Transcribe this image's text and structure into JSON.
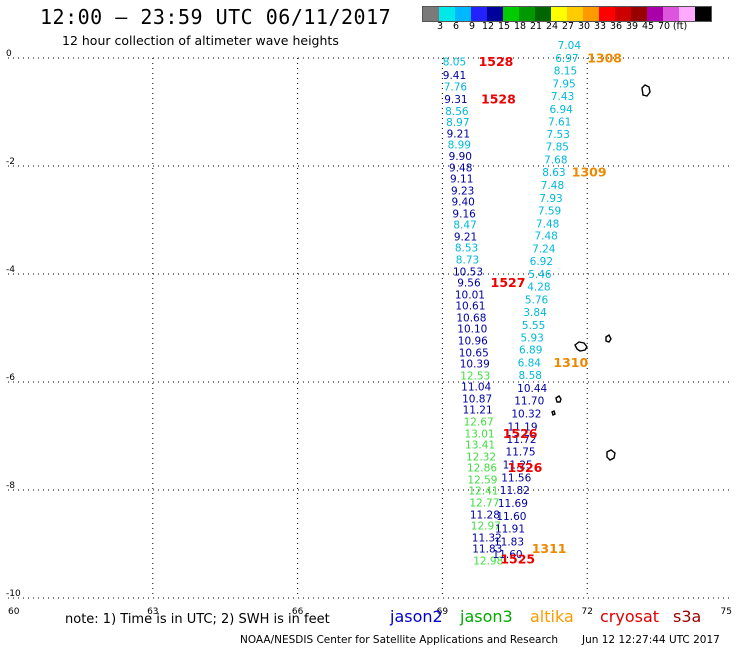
{
  "header": {
    "title": "12:00 — 23:59 UTC 06/11/2017",
    "subtitle": "12 hour collection of altimeter wave heights"
  },
  "colorbar": {
    "colors": [
      "#7a7a7a",
      "#00e8e8",
      "#00b8ff",
      "#2222ff",
      "#00009a",
      "#00cc00",
      "#009900",
      "#006600",
      "#ffff00",
      "#ffcc00",
      "#ff9900",
      "#ff0000",
      "#cc0000",
      "#990000",
      "#aa00aa",
      "#dd55dd",
      "#ffaaff",
      "#000000"
    ],
    "ticks": [
      "3",
      "6",
      "9",
      "12",
      "15",
      "18",
      "21",
      "24",
      "27",
      "30",
      "33",
      "36",
      "39",
      "45",
      "70",
      "(ft)"
    ]
  },
  "footer": {
    "note": "note: 1) Time is in UTC; 2) SWH is in feet",
    "missions": [
      {
        "name": "jason2",
        "color": "#0000cc"
      },
      {
        "name": "jason3",
        "color": "#00aa00"
      },
      {
        "name": "altika",
        "color": "#ff9900"
      },
      {
        "name": "cryosat",
        "color": "#dd0000"
      },
      {
        "name": "s3a",
        "color": "#990000"
      }
    ],
    "credit": "NOAA/NESDIS Center for Satellite Applications and Research",
    "timestamp": "Jun 12 12:27:44 UTC 2017"
  },
  "chart_data": {
    "type": "scatter",
    "title": "12:00 — 23:59 UTC 06/11/2017",
    "subtitle": "12 hour collection of altimeter wave heights",
    "xlim": [
      60,
      75
    ],
    "ylim": [
      -10,
      0
    ],
    "xticks": [
      "60",
      "63",
      "66",
      "69",
      "72",
      "75"
    ],
    "yticks": [
      "0",
      "-2",
      "-4",
      "-6",
      "-8",
      "-10"
    ],
    "grid": true,
    "units": "ft",
    "legend_placement": "bottom",
    "swh_points": [
      {
        "lon": 69.25,
        "lat": -0.08,
        "v": "8.05",
        "c": "#00b8d8"
      },
      {
        "lon": 69.25,
        "lat": -0.33,
        "v": "9.41",
        "c": "#0000a0"
      },
      {
        "lon": 69.27,
        "lat": -0.55,
        "v": "7.76",
        "c": "#00b8d8"
      },
      {
        "lon": 69.28,
        "lat": -0.78,
        "v": "9.31",
        "c": "#0000a0"
      },
      {
        "lon": 69.3,
        "lat": -1.0,
        "v": "8.56",
        "c": "#00b8d8"
      },
      {
        "lon": 69.32,
        "lat": -1.2,
        "v": "8.97",
        "c": "#00b8d8"
      },
      {
        "lon": 69.33,
        "lat": -1.42,
        "v": "9.21",
        "c": "#0000a0"
      },
      {
        "lon": 69.35,
        "lat": -1.62,
        "v": "8.99",
        "c": "#00b8d8"
      },
      {
        "lon": 69.37,
        "lat": -1.83,
        "v": "9.90",
        "c": "#0000a0"
      },
      {
        "lon": 69.38,
        "lat": -2.05,
        "v": "9.48",
        "c": "#0000a0"
      },
      {
        "lon": 69.4,
        "lat": -2.25,
        "v": "9.11",
        "c": "#0000a0"
      },
      {
        "lon": 69.42,
        "lat": -2.47,
        "v": "9.23",
        "c": "#0000a0"
      },
      {
        "lon": 69.43,
        "lat": -2.68,
        "v": "9.40",
        "c": "#0000a0"
      },
      {
        "lon": 69.45,
        "lat": -2.9,
        "v": "9.16",
        "c": "#0000a0"
      },
      {
        "lon": 69.47,
        "lat": -3.1,
        "v": "8.47",
        "c": "#00b8d8"
      },
      {
        "lon": 69.48,
        "lat": -3.32,
        "v": "9.21",
        "c": "#0000a0"
      },
      {
        "lon": 69.5,
        "lat": -3.53,
        "v": "8.53",
        "c": "#00b8d8"
      },
      {
        "lon": 69.52,
        "lat": -3.75,
        "v": "8.73",
        "c": "#00b8d8"
      },
      {
        "lon": 69.53,
        "lat": -3.97,
        "v": "10.53",
        "c": "#0000a0"
      },
      {
        "lon": 69.55,
        "lat": -4.18,
        "v": "9.56",
        "c": "#0000a0"
      },
      {
        "lon": 69.57,
        "lat": -4.4,
        "v": "10.01",
        "c": "#0000a0"
      },
      {
        "lon": 69.58,
        "lat": -4.6,
        "v": "10.61",
        "c": "#0000a0"
      },
      {
        "lon": 69.6,
        "lat": -4.82,
        "v": "10.68",
        "c": "#0000a0"
      },
      {
        "lon": 69.62,
        "lat": -5.03,
        "v": "10.10",
        "c": "#0000a0"
      },
      {
        "lon": 69.63,
        "lat": -5.25,
        "v": "10.96",
        "c": "#0000a0"
      },
      {
        "lon": 69.65,
        "lat": -5.47,
        "v": "10.65",
        "c": "#0000a0"
      },
      {
        "lon": 69.67,
        "lat": -5.68,
        "v": "10.39",
        "c": "#0000a0"
      },
      {
        "lon": 69.68,
        "lat": -5.9,
        "v": "12.53",
        "c": "#40dd40"
      },
      {
        "lon": 69.7,
        "lat": -6.1,
        "v": "11.04",
        "c": "#0000a0"
      },
      {
        "lon": 69.72,
        "lat": -6.32,
        "v": "10.87",
        "c": "#0000a0"
      },
      {
        "lon": 69.73,
        "lat": -6.53,
        "v": "11.21",
        "c": "#0000a0"
      },
      {
        "lon": 69.75,
        "lat": -6.75,
        "v": "12.67",
        "c": "#40dd40"
      },
      {
        "lon": 69.77,
        "lat": -6.97,
        "v": "13.01",
        "c": "#40dd40"
      },
      {
        "lon": 69.78,
        "lat": -7.18,
        "v": "13.41",
        "c": "#40dd40"
      },
      {
        "lon": 69.8,
        "lat": -7.4,
        "v": "12.32",
        "c": "#40dd40"
      },
      {
        "lon": 69.82,
        "lat": -7.6,
        "v": "12.86",
        "c": "#40dd40"
      },
      {
        "lon": 69.83,
        "lat": -7.82,
        "v": "12.59",
        "c": "#40dd40"
      },
      {
        "lon": 69.85,
        "lat": -8.03,
        "v": "12.41",
        "c": "#40dd40"
      },
      {
        "lon": 69.87,
        "lat": -8.25,
        "v": "12.77",
        "c": "#40dd40"
      },
      {
        "lon": 69.88,
        "lat": -8.47,
        "v": "11.28",
        "c": "#0000a0"
      },
      {
        "lon": 69.9,
        "lat": -8.68,
        "v": "12.97",
        "c": "#40dd40"
      },
      {
        "lon": 69.92,
        "lat": -8.9,
        "v": "11.32",
        "c": "#0000a0"
      },
      {
        "lon": 69.93,
        "lat": -9.1,
        "v": "11.83",
        "c": "#0000a0"
      },
      {
        "lon": 69.95,
        "lat": -9.32,
        "v": "12.98",
        "c": "#40dd40"
      },
      {
        "lon": 70.35,
        "lat": -9.2,
        "v": "11.60",
        "c": "#0000a0"
      },
      {
        "lon": 70.38,
        "lat": -8.97,
        "v": "11.83",
        "c": "#0000a0"
      },
      {
        "lon": 70.4,
        "lat": -8.73,
        "v": "11.91",
        "c": "#0000a0"
      },
      {
        "lon": 70.43,
        "lat": -8.5,
        "v": "11.60",
        "c": "#0000a0"
      },
      {
        "lon": 70.46,
        "lat": -8.26,
        "v": "11.69",
        "c": "#0000a0"
      },
      {
        "lon": 70.5,
        "lat": -8.02,
        "v": "11.82",
        "c": "#0000a0"
      },
      {
        "lon": 70.53,
        "lat": -7.79,
        "v": "11.56",
        "c": "#0000a0"
      },
      {
        "lon": 70.56,
        "lat": -7.55,
        "v": "11.25",
        "c": "#0000a0"
      },
      {
        "lon": 70.62,
        "lat": -7.31,
        "v": "11.75",
        "c": "#0000a0"
      },
      {
        "lon": 70.64,
        "lat": -7.07,
        "v": "11.72",
        "c": "#0000a0"
      },
      {
        "lon": 70.66,
        "lat": -6.84,
        "v": "11.19",
        "c": "#0000a0"
      },
      {
        "lon": 70.74,
        "lat": -6.6,
        "v": "10.32",
        "c": "#0000a0"
      },
      {
        "lon": 70.8,
        "lat": -6.36,
        "v": "11.70",
        "c": "#0000a0"
      },
      {
        "lon": 70.86,
        "lat": -6.13,
        "v": "10.44",
        "c": "#0000a0"
      },
      {
        "lon": 70.82,
        "lat": -5.89,
        "v": "8.58",
        "c": "#00b8d8"
      },
      {
        "lon": 70.8,
        "lat": -5.66,
        "v": "6.84",
        "c": "#00b8d8"
      },
      {
        "lon": 70.83,
        "lat": -5.42,
        "v": "6.89",
        "c": "#00b8d8"
      },
      {
        "lon": 70.86,
        "lat": -5.19,
        "v": "5.93",
        "c": "#00b8d8"
      },
      {
        "lon": 70.89,
        "lat": -4.96,
        "v": "5.55",
        "c": "#00b8d8"
      },
      {
        "lon": 70.92,
        "lat": -4.72,
        "v": "3.84",
        "c": "#00b8d8"
      },
      {
        "lon": 70.95,
        "lat": -4.49,
        "v": "5.76",
        "c": "#00b8d8"
      },
      {
        "lon": 71.0,
        "lat": -4.25,
        "v": "4.28",
        "c": "#00b8d8"
      },
      {
        "lon": 71.02,
        "lat": -4.02,
        "v": "5.46",
        "c": "#00b8d8"
      },
      {
        "lon": 71.05,
        "lat": -3.78,
        "v": "6.92",
        "c": "#00b8d8"
      },
      {
        "lon": 71.1,
        "lat": -3.55,
        "v": "7.24",
        "c": "#00b8d8"
      },
      {
        "lon": 71.15,
        "lat": -3.31,
        "v": "7.48",
        "c": "#00b8d8"
      },
      {
        "lon": 71.18,
        "lat": -3.08,
        "v": "7.48",
        "c": "#00b8d8"
      },
      {
        "lon": 71.22,
        "lat": -2.84,
        "v": "7.59",
        "c": "#00b8d8"
      },
      {
        "lon": 71.25,
        "lat": -2.61,
        "v": "7.93",
        "c": "#00b8d8"
      },
      {
        "lon": 71.28,
        "lat": -2.37,
        "v": "7.48",
        "c": "#00b8d8"
      },
      {
        "lon": 71.31,
        "lat": -2.13,
        "v": "8.63",
        "c": "#00b8d8"
      },
      {
        "lon": 71.35,
        "lat": -1.9,
        "v": "7.68",
        "c": "#00b8d8"
      },
      {
        "lon": 71.38,
        "lat": -1.66,
        "v": "7.85",
        "c": "#00b8d8"
      },
      {
        "lon": 71.4,
        "lat": -1.43,
        "v": "7.53",
        "c": "#00b8d8"
      },
      {
        "lon": 71.43,
        "lat": -1.19,
        "v": "7.61",
        "c": "#00b8d8"
      },
      {
        "lon": 71.46,
        "lat": -0.96,
        "v": "6.94",
        "c": "#00b8d8"
      },
      {
        "lon": 71.49,
        "lat": -0.72,
        "v": "7.43",
        "c": "#00b8d8"
      },
      {
        "lon": 71.52,
        "lat": -0.49,
        "v": "7.95",
        "c": "#00b8d8"
      },
      {
        "lon": 71.55,
        "lat": -0.25,
        "v": "8.15",
        "c": "#00b8d8"
      },
      {
        "lon": 71.58,
        "lat": -0.02,
        "v": "6.97",
        "c": "#00b8d8"
      },
      {
        "lon": 71.63,
        "lat": 0.22,
        "v": "7.04",
        "c": "#00b8d8"
      }
    ],
    "pass_labels": [
      {
        "lon": 69.75,
        "lat": -0.08,
        "v": "1528",
        "c": "#ee0000"
      },
      {
        "lon": 69.8,
        "lat": -0.78,
        "v": "1528",
        "c": "#ee0000"
      },
      {
        "lon": 70.0,
        "lat": -4.18,
        "v": "1527",
        "c": "#ee0000"
      },
      {
        "lon": 70.25,
        "lat": -6.97,
        "v": "1526",
        "c": "#ee0000"
      },
      {
        "lon": 70.35,
        "lat": -7.6,
        "v": "1526",
        "c": "#ee0000"
      },
      {
        "lon": 70.2,
        "lat": -9.3,
        "v": "1525",
        "c": "#ee0000"
      },
      {
        "lon": 72.0,
        "lat": -0.02,
        "v": "1308",
        "c": "#ee8800"
      },
      {
        "lon": 71.68,
        "lat": -2.13,
        "v": "1309",
        "c": "#ee8800"
      },
      {
        "lon": 71.3,
        "lat": -5.66,
        "v": "1310",
        "c": "#ee8800"
      },
      {
        "lon": 70.85,
        "lat": -9.1,
        "v": "1311",
        "c": "#ee8800"
      }
    ]
  }
}
